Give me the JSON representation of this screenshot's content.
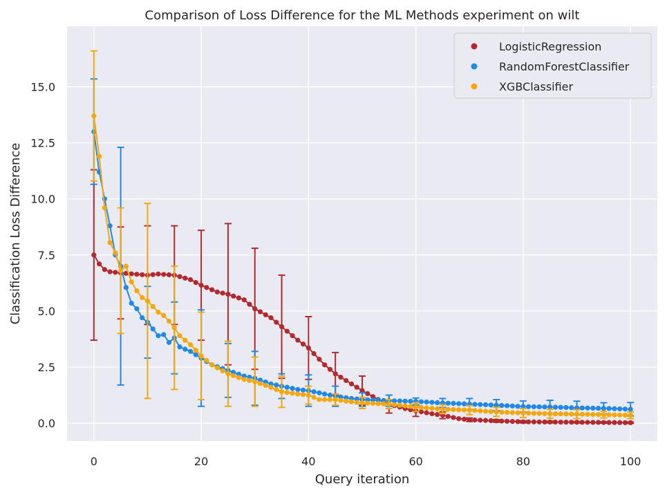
{
  "chart_data": {
    "type": "line",
    "title": "Comparison of Loss Difference for the ML Methods experiment on wilt",
    "xlabel": "Query iteration",
    "ylabel": "Classification Loss Difference",
    "xlim": [
      -5,
      105
    ],
    "ylim": [
      -0.8,
      17.7
    ],
    "xticks": [
      0,
      20,
      40,
      60,
      80,
      100
    ],
    "xtick_labels": [
      "0",
      "20",
      "40",
      "60",
      "80",
      "100"
    ],
    "yticks": [
      0.0,
      2.5,
      5.0,
      7.5,
      10.0,
      12.5,
      15.0
    ],
    "ytick_labels": [
      "0.0",
      "2.5",
      "5.0",
      "7.5",
      "10.0",
      "12.5",
      "15.0"
    ],
    "grid": true,
    "legend_position": "upper right",
    "errorbar_every": 5,
    "series": [
      {
        "name": "LogisticRegression",
        "color": "#b22a2e",
        "knots": [
          [
            0,
            7.5
          ],
          [
            1,
            7.1
          ],
          [
            2,
            6.85
          ],
          [
            3,
            6.75
          ],
          [
            5,
            6.7
          ],
          [
            10,
            6.6
          ],
          [
            12,
            6.65
          ],
          [
            15,
            6.6
          ],
          [
            18,
            6.4
          ],
          [
            20,
            6.15
          ],
          [
            23,
            5.85
          ],
          [
            25,
            5.75
          ],
          [
            28,
            5.5
          ],
          [
            30,
            5.1
          ],
          [
            33,
            4.7
          ],
          [
            35,
            4.3
          ],
          [
            38,
            3.7
          ],
          [
            40,
            3.35
          ],
          [
            43,
            2.6
          ],
          [
            45,
            2.2
          ],
          [
            48,
            1.75
          ],
          [
            50,
            1.45
          ],
          [
            53,
            1.05
          ],
          [
            55,
            0.85
          ],
          [
            58,
            0.65
          ],
          [
            60,
            0.55
          ],
          [
            63,
            0.42
          ],
          [
            65,
            0.35
          ],
          [
            68,
            0.2
          ],
          [
            70,
            0.15
          ],
          [
            75,
            0.1
          ],
          [
            80,
            0.06
          ],
          [
            90,
            0.04
          ],
          [
            100,
            0.02
          ]
        ],
        "errors": [
          [
            0,
            3.8
          ],
          [
            5,
            2.05
          ],
          [
            10,
            2.2
          ],
          [
            15,
            2.2
          ],
          [
            20,
            2.45
          ],
          [
            25,
            3.15
          ],
          [
            30,
            2.7
          ],
          [
            35,
            2.3
          ],
          [
            40,
            1.4
          ],
          [
            45,
            0.95
          ],
          [
            50,
            0.65
          ],
          [
            55,
            0.4
          ],
          [
            60,
            0.25
          ],
          [
            65,
            0.15
          ],
          [
            70,
            0.08
          ],
          [
            75,
            0.06
          ],
          [
            80,
            0.05
          ],
          [
            85,
            0.04
          ],
          [
            90,
            0.03
          ],
          [
            95,
            0.03
          ],
          [
            100,
            0.03
          ]
        ]
      },
      {
        "name": "RandomForestClassifier",
        "color": "#1f88e8",
        "knots": [
          [
            0,
            13.0
          ],
          [
            1,
            11.2
          ],
          [
            2,
            10.0
          ],
          [
            3,
            8.8
          ],
          [
            4,
            7.5
          ],
          [
            5,
            7.0
          ],
          [
            6,
            6.05
          ],
          [
            7,
            5.35
          ],
          [
            8,
            5.1
          ],
          [
            9,
            4.7
          ],
          [
            10,
            4.5
          ],
          [
            11,
            4.2
          ],
          [
            12,
            3.9
          ],
          [
            13,
            3.95
          ],
          [
            14,
            3.6
          ],
          [
            15,
            3.8
          ],
          [
            16,
            3.4
          ],
          [
            18,
            3.2
          ],
          [
            20,
            2.9
          ],
          [
            22,
            2.6
          ],
          [
            25,
            2.35
          ],
          [
            28,
            2.1
          ],
          [
            30,
            2.0
          ],
          [
            33,
            1.75
          ],
          [
            35,
            1.65
          ],
          [
            38,
            1.5
          ],
          [
            40,
            1.45
          ],
          [
            43,
            1.3
          ],
          [
            45,
            1.2
          ],
          [
            48,
            1.1
          ],
          [
            50,
            1.05
          ],
          [
            55,
            1.0
          ],
          [
            60,
            0.97
          ],
          [
            65,
            0.9
          ],
          [
            70,
            0.85
          ],
          [
            75,
            0.8
          ],
          [
            80,
            0.74
          ],
          [
            85,
            0.72
          ],
          [
            90,
            0.68
          ],
          [
            95,
            0.66
          ],
          [
            100,
            0.62
          ]
        ],
        "errors": [
          [
            0,
            2.35
          ],
          [
            5,
            5.3
          ],
          [
            10,
            1.6
          ],
          [
            15,
            1.6
          ],
          [
            20,
            2.15
          ],
          [
            25,
            1.2
          ],
          [
            30,
            1.2
          ],
          [
            35,
            0.55
          ],
          [
            40,
            0.7
          ],
          [
            45,
            0.45
          ],
          [
            50,
            0.3
          ],
          [
            55,
            0.25
          ],
          [
            60,
            0.15
          ],
          [
            65,
            0.2
          ],
          [
            70,
            0.25
          ],
          [
            75,
            0.25
          ],
          [
            80,
            0.25
          ],
          [
            85,
            0.3
          ],
          [
            90,
            0.3
          ],
          [
            95,
            0.25
          ],
          [
            100,
            0.3
          ]
        ]
      },
      {
        "name": "XGBClassifier",
        "color": "#f5a80d",
        "knots": [
          [
            0,
            13.7
          ],
          [
            1,
            11.9
          ],
          [
            2,
            9.6
          ],
          [
            3,
            8.05
          ],
          [
            4,
            7.6
          ],
          [
            5,
            6.8
          ],
          [
            6,
            7.0
          ],
          [
            7,
            6.3
          ],
          [
            8,
            5.9
          ],
          [
            9,
            5.6
          ],
          [
            10,
            5.45
          ],
          [
            11,
            5.2
          ],
          [
            12,
            4.95
          ],
          [
            13,
            4.8
          ],
          [
            14,
            4.55
          ],
          [
            15,
            4.25
          ],
          [
            16,
            3.9
          ],
          [
            18,
            3.5
          ],
          [
            20,
            3.0
          ],
          [
            22,
            2.6
          ],
          [
            25,
            2.2
          ],
          [
            28,
            1.95
          ],
          [
            30,
            1.85
          ],
          [
            33,
            1.6
          ],
          [
            35,
            1.4
          ],
          [
            38,
            1.3
          ],
          [
            40,
            1.25
          ],
          [
            42,
            1.05
          ],
          [
            45,
            1.05
          ],
          [
            48,
            0.95
          ],
          [
            50,
            0.9
          ],
          [
            55,
            0.85
          ],
          [
            60,
            0.72
          ],
          [
            65,
            0.62
          ],
          [
            70,
            0.58
          ],
          [
            75,
            0.5
          ],
          [
            80,
            0.45
          ],
          [
            85,
            0.42
          ],
          [
            90,
            0.4
          ],
          [
            95,
            0.38
          ],
          [
            100,
            0.35
          ]
        ],
        "errors": [
          [
            0,
            2.9
          ],
          [
            5,
            2.8
          ],
          [
            10,
            4.35
          ],
          [
            15,
            2.75
          ],
          [
            20,
            1.95
          ],
          [
            25,
            1.45
          ],
          [
            30,
            1.1
          ],
          [
            35,
            0.7
          ],
          [
            40,
            0.4
          ],
          [
            45,
            0.25
          ],
          [
            50,
            0.25
          ],
          [
            55,
            0.2
          ],
          [
            60,
            0.2
          ],
          [
            65,
            0.2
          ],
          [
            70,
            0.2
          ],
          [
            75,
            0.2
          ],
          [
            80,
            0.2
          ],
          [
            85,
            0.2
          ],
          [
            90,
            0.2
          ],
          [
            95,
            0.15
          ],
          [
            100,
            0.15
          ]
        ]
      }
    ]
  }
}
